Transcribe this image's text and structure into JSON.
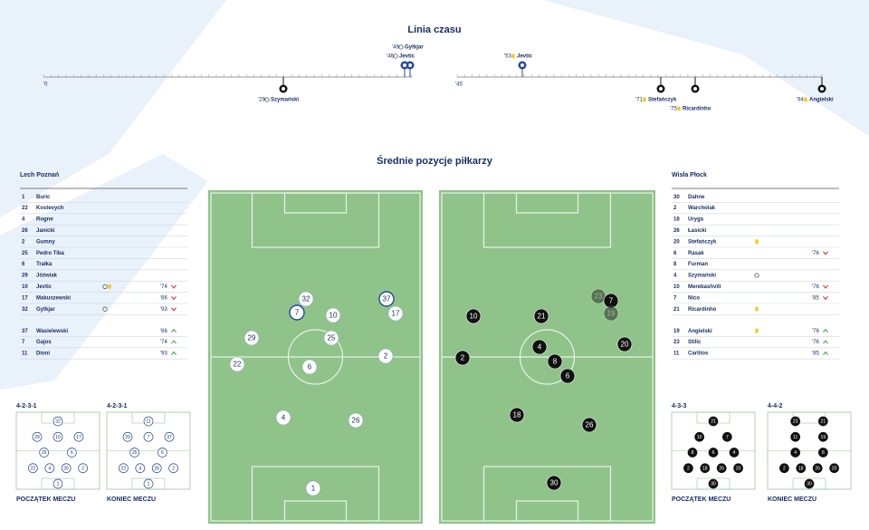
{
  "timeline": {
    "title": "Linia czasu",
    "start_first": "'0",
    "start_second": "'45",
    "events": [
      {
        "minute": "'49",
        "name": "Gytkjar",
        "icon": "goal",
        "team": "home",
        "side": "top"
      },
      {
        "minute": "'46",
        "name": "Jevtic",
        "icon": "goal",
        "team": "home",
        "side": "top"
      },
      {
        "minute": "'53",
        "name": "Jevtic",
        "icon": "yellow",
        "team": "home",
        "side": "top"
      },
      {
        "minute": "'29",
        "name": "Szymański",
        "icon": "goal",
        "team": "away",
        "side": "bottom"
      },
      {
        "minute": "'71",
        "name": "Stefańczyk",
        "icon": "yellow",
        "team": "away",
        "side": "bottom"
      },
      {
        "minute": "'75",
        "name": "Ricardinho",
        "icon": "yellow",
        "team": "away",
        "side": "bottom"
      },
      {
        "minute": "'94",
        "name": "Angielski",
        "icon": "yellow",
        "team": "away",
        "side": "bottom"
      }
    ]
  },
  "positions_title": "Średnie pozycje piłkarzy",
  "home": {
    "name": "Lech Poznań",
    "players": [
      {
        "number": "1",
        "name": "Buric"
      },
      {
        "number": "22",
        "name": "Kostevych"
      },
      {
        "number": "4",
        "name": "Rogne"
      },
      {
        "number": "26",
        "name": "Janicki"
      },
      {
        "number": "2",
        "name": "Gumny"
      },
      {
        "number": "25",
        "name": "Pedro Tiba"
      },
      {
        "number": "6",
        "name": "Trałka"
      },
      {
        "number": "29",
        "name": "Jóźwiak"
      },
      {
        "number": "10",
        "name": "Jevtic",
        "events": [
          "goal",
          "yellow"
        ],
        "sub": "'74",
        "dir": "out"
      },
      {
        "number": "17",
        "name": "Makuszewski",
        "sub": "'66",
        "dir": "out"
      },
      {
        "number": "32",
        "name": "Gytkjar",
        "events": [
          "goal"
        ],
        "sub": "'93",
        "dir": "out"
      }
    ],
    "subs": [
      {
        "number": "37",
        "name": "Wasielewski",
        "sub": "'66",
        "dir": "in"
      },
      {
        "number": "7",
        "name": "Gajos",
        "sub": "'74",
        "dir": "in"
      },
      {
        "number": "11",
        "name": "Dioni",
        "sub": "'93",
        "dir": "in"
      }
    ],
    "pitch": [
      "32",
      "7",
      "37",
      "17",
      "10",
      "29",
      "25",
      "22",
      "6",
      "2",
      "4",
      "26",
      "1"
    ],
    "formations": [
      {
        "name": "4-2-3-1",
        "caption": "POCZĄTEK MECZU",
        "rows": [
          [
            "32"
          ],
          [
            "29",
            "10",
            "17"
          ],
          [
            "25",
            "6"
          ],
          [
            "22",
            "4",
            "26",
            "2"
          ],
          [
            "1"
          ]
        ]
      },
      {
        "name": "4-2-3-1",
        "caption": "KONIEC MECZU",
        "rows": [
          [
            "11"
          ],
          [
            "29",
            "7",
            "37"
          ],
          [
            "25",
            "6"
          ],
          [
            "22",
            "4",
            "26",
            "2"
          ],
          [
            "1"
          ]
        ]
      }
    ]
  },
  "away": {
    "name": "Wisła Płock",
    "players": [
      {
        "number": "30",
        "name": "Dahne"
      },
      {
        "number": "2",
        "name": "Warcholak"
      },
      {
        "number": "18",
        "name": "Uryga"
      },
      {
        "number": "26",
        "name": "Łasicki"
      },
      {
        "number": "20",
        "name": "Stefańczyk",
        "events": [
          "yellow"
        ]
      },
      {
        "number": "6",
        "name": "Rasak",
        "sub": "'76",
        "dir": "out"
      },
      {
        "number": "8",
        "name": "Furman"
      },
      {
        "number": "4",
        "name": "Szymański",
        "events": [
          "goal"
        ]
      },
      {
        "number": "10",
        "name": "Merebashvili",
        "sub": "'76",
        "dir": "out"
      },
      {
        "number": "7",
        "name": "Nico",
        "sub": "'85",
        "dir": "out"
      },
      {
        "number": "21",
        "name": "Ricardinho",
        "events": [
          "yellow"
        ]
      }
    ],
    "subs": [
      {
        "number": "19",
        "name": "Angielski",
        "events": [
          "yellow"
        ],
        "sub": "'76",
        "dir": "in"
      },
      {
        "number": "23",
        "name": "Stilic",
        "sub": "'76",
        "dir": "in"
      },
      {
        "number": "11",
        "name": "Carlitos",
        "sub": "'85",
        "dir": "in"
      }
    ],
    "pitch": [
      "10",
      "21",
      "23",
      "7",
      "19",
      "20",
      "4",
      "2",
      "8",
      "6",
      "18",
      "26",
      "30"
    ],
    "formations": [
      {
        "name": "4-3-3",
        "caption": "POCZĄTEK MECZU",
        "rows": [
          [
            "21"
          ],
          [
            "10",
            "7"
          ],
          [
            "8",
            "6",
            "4"
          ],
          [
            "2",
            "18",
            "26",
            "20"
          ],
          [
            "30"
          ]
        ]
      },
      {
        "name": "4-4-2",
        "caption": "KONIEC MECZU",
        "rows": [
          [
            "23",
            "21"
          ],
          [
            "11",
            "19"
          ],
          [
            "4",
            "8"
          ],
          [
            "2",
            "18",
            "26",
            "20"
          ],
          [
            "30"
          ]
        ]
      }
    ]
  }
}
